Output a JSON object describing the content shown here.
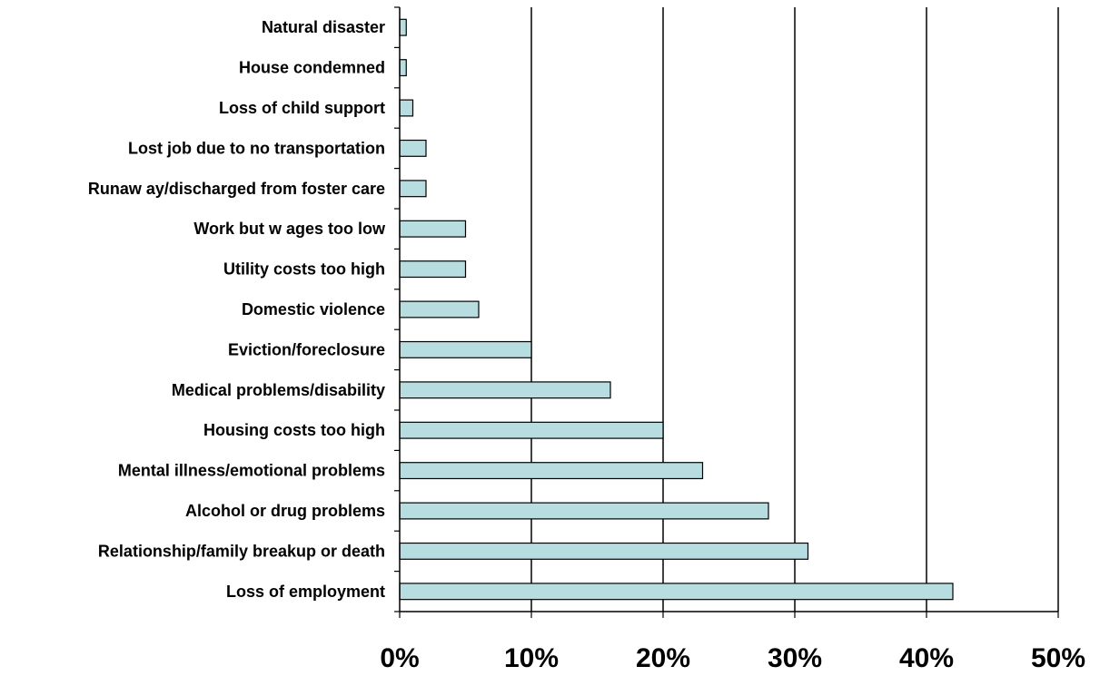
{
  "chart_data": {
    "type": "bar",
    "orientation": "horizontal",
    "title": "",
    "xlabel": "",
    "ylabel": "",
    "categories": [
      "Natural disaster",
      "House condemned",
      "Loss of child support",
      "Lost job due to no transportation",
      "Runaw ay/discharged from foster care",
      "Work but w ages too low",
      "Utility costs too high",
      "Domestic violence",
      "Eviction/foreclosure",
      "Medical problems/disability",
      "Housing costs too high",
      "Mental illness/emotional problems",
      "Alcohol or drug problems",
      "Relationship/family breakup or death",
      "Loss of employment"
    ],
    "values": [
      0.5,
      0.5,
      1,
      2,
      2,
      5,
      5,
      6,
      10,
      16,
      20,
      23,
      28,
      31,
      42
    ],
    "value_unit": "%",
    "xlim": [
      0,
      50
    ],
    "x_ticks": [
      0,
      10,
      20,
      30,
      40,
      50
    ],
    "x_tick_labels": [
      "0%",
      "10%",
      "20%",
      "30%",
      "40%",
      "50%"
    ],
    "grid": "vertical",
    "legend": "none",
    "colors": {
      "bar_fill": "#b7dde0",
      "bar_stroke": "#000000",
      "grid": "#000000"
    }
  }
}
